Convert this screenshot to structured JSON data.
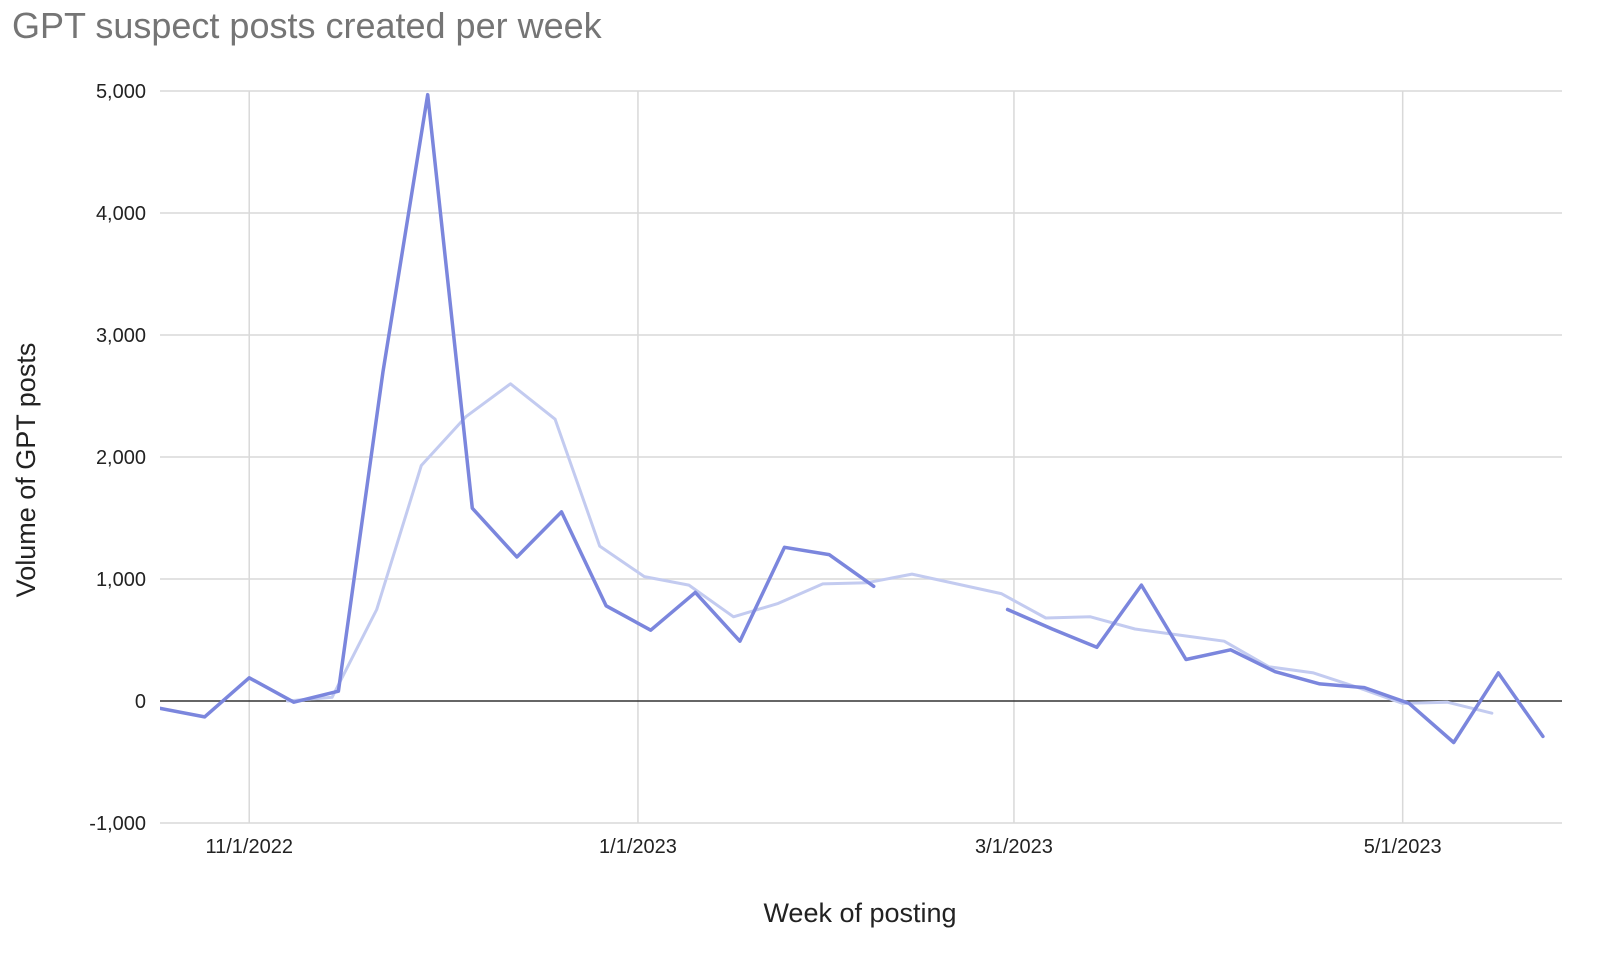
{
  "chart_data": {
    "type": "line",
    "title": "GPT suspect posts created per week",
    "xlabel": "Week of posting",
    "ylabel": "Volume of GPT posts",
    "ylim": [
      -1000,
      5000
    ],
    "yticks": [
      -1000,
      0,
      1000,
      2000,
      3000,
      4000,
      5000
    ],
    "ytick_labels": [
      "-1,000",
      "0",
      "1,000",
      "2,000",
      "3,000",
      "4,000",
      "5,000"
    ],
    "xlim": [
      "2022-10-18",
      "2023-05-26"
    ],
    "xticks": [
      "2022-11-01",
      "2023-01-01",
      "2023-03-01",
      "2023-05-01"
    ],
    "xtick_labels": [
      "11/1/2022",
      "1/1/2023",
      "3/1/2023",
      "5/1/2023"
    ],
    "grid": true,
    "legend": "none",
    "zero_line": true,
    "series": [
      {
        "color": "#c3cbf0",
        "points": [
          {
            "x": "2022-11-07",
            "y": 0
          },
          {
            "x": "2022-11-14",
            "y": 30
          },
          {
            "x": "2022-11-21",
            "y": 750
          },
          {
            "x": "2022-11-28",
            "y": 1930
          },
          {
            "x": "2022-12-05",
            "y": 2330
          },
          {
            "x": "2022-12-12",
            "y": 2600
          },
          {
            "x": "2022-12-19",
            "y": 2310
          },
          {
            "x": "2022-12-26",
            "y": 1270
          },
          {
            "x": "2023-01-02",
            "y": 1020
          },
          {
            "x": "2023-01-09",
            "y": 950
          },
          {
            "x": "2023-01-16",
            "y": 690
          },
          {
            "x": "2023-01-23",
            "y": 800
          },
          {
            "x": "2023-01-30",
            "y": 960
          },
          {
            "x": "2023-02-06",
            "y": 970
          },
          {
            "x": "2023-02-13",
            "y": 1040
          },
          {
            "x": "2023-02-20",
            "y": 960
          },
          {
            "x": "2023-02-27",
            "y": 880
          },
          {
            "x": "2023-03-06",
            "y": 680
          },
          {
            "x": "2023-03-13",
            "y": 690
          },
          {
            "x": "2023-03-20",
            "y": 590
          },
          {
            "x": "2023-03-27",
            "y": 540
          },
          {
            "x": "2023-04-03",
            "y": 490
          },
          {
            "x": "2023-04-10",
            "y": 280
          },
          {
            "x": "2023-04-17",
            "y": 230
          },
          {
            "x": "2023-04-24",
            "y": 110
          },
          {
            "x": "2023-05-01",
            "y": -20
          },
          {
            "x": "2023-05-08",
            "y": -10
          },
          {
            "x": "2023-05-15",
            "y": -100
          }
        ]
      },
      {
        "color": "#7b86dd",
        "points": [
          {
            "x": "2022-10-18",
            "y": -60
          },
          {
            "x": "2022-10-25",
            "y": -130
          },
          {
            "x": "2022-11-01",
            "y": 190
          },
          {
            "x": "2022-11-08",
            "y": -10
          },
          {
            "x": "2022-11-15",
            "y": 80
          },
          {
            "x": "2022-11-22",
            "y": 2700
          },
          {
            "x": "2022-11-29",
            "y": 4970
          },
          {
            "x": "2022-12-06",
            "y": 1580
          },
          {
            "x": "2022-12-13",
            "y": 1180
          },
          {
            "x": "2022-12-20",
            "y": 1550
          },
          {
            "x": "2022-12-27",
            "y": 780
          },
          {
            "x": "2023-01-03",
            "y": 580
          },
          {
            "x": "2023-01-10",
            "y": 890
          },
          {
            "x": "2023-01-17",
            "y": 490
          },
          {
            "x": "2023-01-24",
            "y": 1260
          },
          {
            "x": "2023-01-31",
            "y": 1200
          },
          {
            "x": "2023-02-07",
            "y": 940
          },
          {
            "x": "2023-02-14",
            "y": null
          },
          {
            "x": "2023-02-21",
            "y": null
          },
          {
            "x": "2023-02-28",
            "y": 750
          },
          {
            "x": "2023-03-07",
            "y": 590
          },
          {
            "x": "2023-03-14",
            "y": 440
          },
          {
            "x": "2023-03-21",
            "y": 950
          },
          {
            "x": "2023-03-28",
            "y": 340
          },
          {
            "x": "2023-04-04",
            "y": 420
          },
          {
            "x": "2023-04-11",
            "y": 240
          },
          {
            "x": "2023-04-18",
            "y": 140
          },
          {
            "x": "2023-04-25",
            "y": 110
          },
          {
            "x": "2023-05-02",
            "y": -20
          },
          {
            "x": "2023-05-09",
            "y": -340
          },
          {
            "x": "2023-05-16",
            "y": 230
          },
          {
            "x": "2023-05-23",
            "y": -290
          }
        ]
      }
    ]
  }
}
